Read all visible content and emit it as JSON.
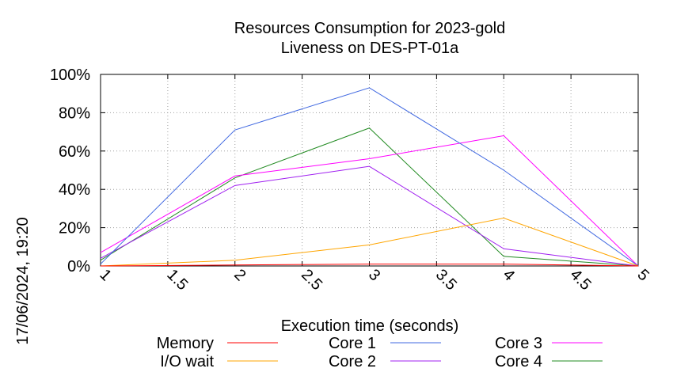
{
  "chart_data": {
    "type": "line",
    "title": "Resources Consumption for 2023-gold",
    "subtitle": "Liveness on DES-PT-01a",
    "xlabel": "Execution time (seconds)",
    "ylabel": "",
    "side_label": "17/06/2024, 19:20",
    "xlim": [
      1,
      5
    ],
    "ylim": [
      0,
      100
    ],
    "x_ticks": [
      1,
      1.5,
      2,
      2.5,
      3,
      3.5,
      4,
      4.5,
      5
    ],
    "x_tick_labels": [
      "1",
      "1.5",
      "2",
      "2.5",
      "3",
      "3.5",
      "4",
      "4.5",
      "5"
    ],
    "y_ticks": [
      0,
      20,
      40,
      60,
      80,
      100
    ],
    "y_tick_labels": [
      "0%",
      "20%",
      "40%",
      "60%",
      "80%",
      "100%"
    ],
    "grid": true,
    "legend_position": "bottom",
    "x": [
      1,
      2,
      3,
      4,
      5
    ],
    "series": [
      {
        "name": "Memory",
        "color": "#ff0000",
        "values": [
          0,
          0.5,
          1,
          1,
          0
        ]
      },
      {
        "name": "I/O wait",
        "color": "#ffa500",
        "values": [
          0,
          3,
          11,
          25,
          0
        ]
      },
      {
        "name": "Core 1",
        "color": "#4169e1",
        "values": [
          1,
          71,
          93,
          50,
          0
        ]
      },
      {
        "name": "Core 2",
        "color": "#a020f0",
        "values": [
          4,
          42,
          52,
          9,
          0
        ]
      },
      {
        "name": "Core 3",
        "color": "#ff00ff",
        "values": [
          7,
          47,
          56,
          68,
          0
        ]
      },
      {
        "name": "Core 4",
        "color": "#228b22",
        "values": [
          3,
          46,
          72,
          5,
          0
        ]
      }
    ]
  }
}
